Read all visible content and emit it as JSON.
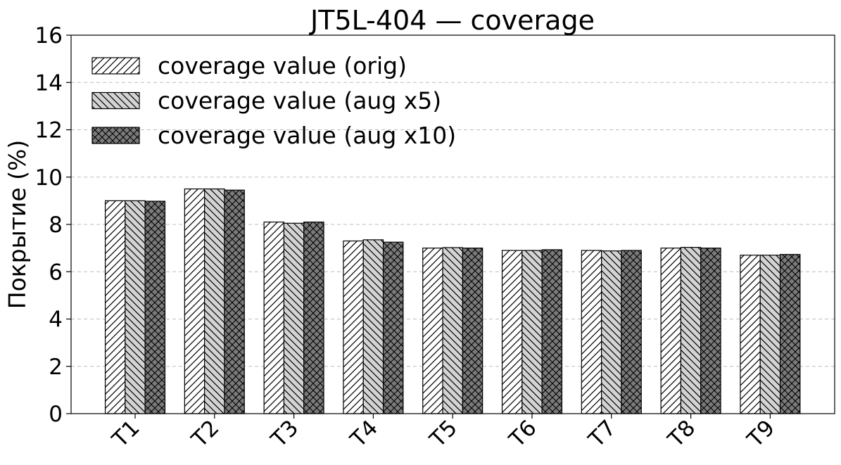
{
  "chart_data": {
    "type": "bar",
    "title": "JT5L-404 — coverage",
    "xlabel": "",
    "ylabel": "Покрытие (%)",
    "ylim": [
      0,
      16
    ],
    "yticks": [
      0,
      2,
      4,
      6,
      8,
      10,
      12,
      14,
      16
    ],
    "grid": "horizontal dashed",
    "legend_position": "top-left",
    "categories": [
      "T1",
      "T2",
      "T3",
      "T4",
      "T5",
      "T6",
      "T7",
      "T8",
      "T9"
    ],
    "series": [
      {
        "name": "coverage value (orig)",
        "color": "#ffffff",
        "hatch": "forward-diagonal",
        "values": [
          9.0,
          9.5,
          8.1,
          7.3,
          7.0,
          6.9,
          6.9,
          7.0,
          6.7
        ]
      },
      {
        "name": "coverage value (aug x5)",
        "color": "#d3d3d3",
        "hatch": "back-diagonal",
        "values": [
          9.0,
          9.5,
          8.05,
          7.35,
          7.02,
          6.9,
          6.88,
          7.03,
          6.7
        ]
      },
      {
        "name": "coverage value (aug x10)",
        "color": "#7a7a7a",
        "hatch": "cross",
        "values": [
          8.98,
          9.45,
          8.1,
          7.25,
          7.0,
          6.93,
          6.9,
          7.0,
          6.73
        ]
      }
    ]
  }
}
